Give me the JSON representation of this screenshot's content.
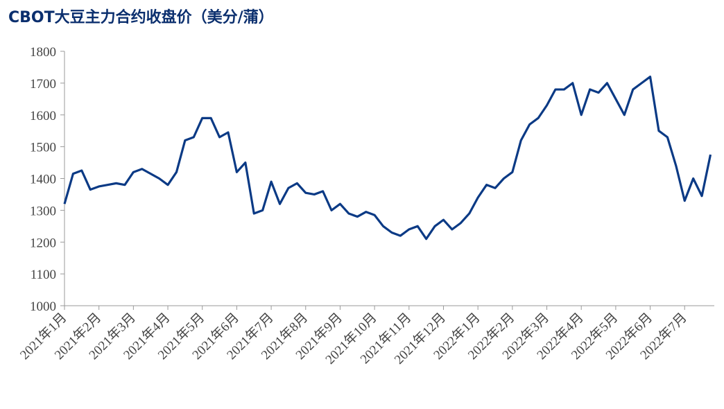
{
  "chart_data": {
    "type": "line",
    "title": "CBOT大豆主力合约收盘价（美分/蒲）",
    "categories": [
      "2021年1月",
      null,
      null,
      null,
      "2021年2月",
      null,
      null,
      null,
      "2021年3月",
      null,
      null,
      null,
      "2021年4月",
      null,
      null,
      null,
      "2021年5月",
      null,
      null,
      null,
      "2021年6月",
      null,
      null,
      null,
      "2021年7月",
      null,
      null,
      null,
      "2021年8月",
      null,
      null,
      null,
      "2021年9月",
      null,
      null,
      null,
      "2021年10月",
      null,
      null,
      null,
      "2021年11月",
      null,
      null,
      null,
      "2021年12月",
      null,
      null,
      null,
      "2022年1月",
      null,
      null,
      null,
      "2022年2月",
      null,
      null,
      null,
      "2022年3月",
      null,
      null,
      null,
      "2022年4月",
      null,
      null,
      null,
      "2022年5月",
      null,
      null,
      null,
      "2022年6月",
      null,
      null,
      null,
      "2022年7月",
      null,
      null,
      null
    ],
    "series": [
      {
        "name": "CBOT大豆主力合约收盘价",
        "color": "#0b3a85",
        "values": [
          1320,
          1415,
          1425,
          1365,
          1375,
          1380,
          1385,
          1380,
          1420,
          1430,
          1415,
          1400,
          1380,
          1420,
          1520,
          1530,
          1590,
          1590,
          1530,
          1545,
          1420,
          1450,
          1290,
          1300,
          1390,
          1320,
          1370,
          1385,
          1355,
          1350,
          1360,
          1300,
          1320,
          1290,
          1280,
          1295,
          1285,
          1250,
          1230,
          1220,
          1240,
          1250,
          1210,
          1250,
          1270,
          1240,
          1260,
          1290,
          1340,
          1380,
          1370,
          1400,
          1420,
          1520,
          1570,
          1590,
          1630,
          1680,
          1680,
          1700,
          1600,
          1680,
          1670,
          1700,
          1650,
          1600,
          1680,
          1700,
          1720,
          1550,
          1530,
          1440,
          1330,
          1400,
          1345,
          1475
        ]
      }
    ],
    "ylim": [
      1000,
      1800
    ],
    "yticks": [
      1000,
      1100,
      1200,
      1300,
      1400,
      1500,
      1600,
      1700,
      1800
    ]
  }
}
